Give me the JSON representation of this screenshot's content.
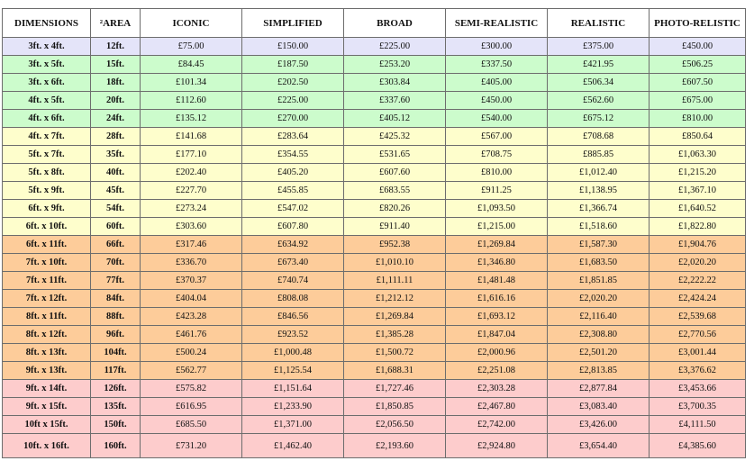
{
  "table": {
    "headers": [
      "DIMENSIONS",
      "²AREA",
      "ICONIC",
      "SIMPLIFIED",
      "BROAD",
      "SEMI-REALISTIC",
      "REALISTIC",
      "PHOTO-RELISTIC"
    ],
    "row_colors": {
      "lavender": "#e4e4f9",
      "green": "#ccfccc",
      "yellow": "#fefecc",
      "orange": "#fdcc9a",
      "pink": "#fdcccc"
    },
    "rows": [
      {
        "band": "lavender",
        "cells": [
          "3ft. x 4ft.",
          "12ft.",
          "£75.00",
          "£150.00",
          "£225.00",
          "£300.00",
          "£375.00",
          "£450.00"
        ]
      },
      {
        "band": "green",
        "cells": [
          "3ft. x 5ft.",
          "15ft.",
          "£84.45",
          "£187.50",
          "£253.20",
          "£337.50",
          "£421.95",
          "£506.25"
        ]
      },
      {
        "band": "green",
        "cells": [
          "3ft. x 6ft.",
          "18ft.",
          "£101.34",
          "£202.50",
          "£303.84",
          "£405.00",
          "£506.34",
          "£607.50"
        ]
      },
      {
        "band": "green",
        "cells": [
          "4ft. x 5ft.",
          "20ft.",
          "£112.60",
          "£225.00",
          "£337.60",
          "£450.00",
          "£562.60",
          "£675.00"
        ]
      },
      {
        "band": "green",
        "cells": [
          "4ft. x 6ft.",
          "24ft.",
          "£135.12",
          "£270.00",
          "£405.12",
          "£540.00",
          "£675.12",
          "£810.00"
        ]
      },
      {
        "band": "yellow",
        "cells": [
          "4ft. x 7ft.",
          "28ft.",
          "£141.68",
          "£283.64",
          "£425.32",
          "£567.00",
          "£708.68",
          "£850.64"
        ]
      },
      {
        "band": "yellow",
        "cells": [
          "5ft. x 7ft.",
          "35ft.",
          "£177.10",
          "£354.55",
          "£531.65",
          "£708.75",
          "£885.85",
          "£1,063.30"
        ]
      },
      {
        "band": "yellow",
        "cells": [
          "5ft. x 8ft.",
          "40ft.",
          "£202.40",
          "£405.20",
          "£607.60",
          "£810.00",
          "£1,012.40",
          "£1,215.20"
        ]
      },
      {
        "band": "yellow",
        "cells": [
          "5ft. x 9ft.",
          "45ft.",
          "£227.70",
          "£455.85",
          "£683.55",
          "£911.25",
          "£1,138.95",
          "£1,367.10"
        ]
      },
      {
        "band": "yellow",
        "cells": [
          "6ft. x 9ft.",
          "54ft.",
          "£273.24",
          "£547.02",
          "£820.26",
          "£1,093.50",
          "£1,366.74",
          "£1,640.52"
        ]
      },
      {
        "band": "yellow",
        "cells": [
          "6ft. x 10ft.",
          "60ft.",
          "£303.60",
          "£607.80",
          "£911.40",
          "£1,215.00",
          "£1,518.60",
          "£1,822.80"
        ]
      },
      {
        "band": "orange",
        "cells": [
          "6ft. x 11ft.",
          "66ft.",
          "£317.46",
          "£634.92",
          "£952.38",
          "£1,269.84",
          "£1,587.30",
          "£1,904.76"
        ]
      },
      {
        "band": "orange",
        "cells": [
          "7ft. x 10ft.",
          "70ft.",
          "£336.70",
          "£673.40",
          "£1,010.10",
          "£1,346.80",
          "£1,683.50",
          "£2,020.20"
        ]
      },
      {
        "band": "orange",
        "cells": [
          "7ft. x 11ft.",
          "77ft.",
          "£370.37",
          "£740.74",
          "£1,111.11",
          "£1,481.48",
          "£1,851.85",
          "£2,222.22"
        ]
      },
      {
        "band": "orange",
        "cells": [
          "7ft. x 12ft.",
          "84ft.",
          "£404.04",
          "£808.08",
          "£1,212.12",
          "£1,616.16",
          "£2,020.20",
          "£2,424.24"
        ]
      },
      {
        "band": "orange",
        "cells": [
          "8ft. x 11ft.",
          "88ft.",
          "£423.28",
          "£846.56",
          "£1,269.84",
          "£1,693.12",
          "£2,116.40",
          "£2,539.68"
        ]
      },
      {
        "band": "orange",
        "cells": [
          "8ft. x 12ft.",
          "96ft.",
          "£461.76",
          "£923.52",
          "£1,385.28",
          "£1,847.04",
          "£2,308.80",
          "£2,770.56"
        ]
      },
      {
        "band": "orange",
        "cells": [
          "8ft. x 13ft.",
          "104ft.",
          "£500.24",
          "£1,000.48",
          "£1,500.72",
          "£2,000.96",
          "£2,501.20",
          "£3,001.44"
        ]
      },
      {
        "band": "orange",
        "cells": [
          "9ft. x 13ft.",
          "117ft.",
          "£562.77",
          "£1,125.54",
          "£1,688.31",
          "£2,251.08",
          "£2,813.85",
          "£3,376.62"
        ]
      },
      {
        "band": "pink",
        "cells": [
          "9ft. x 14ft.",
          "126ft.",
          "£575.82",
          "£1,151.64",
          "£1,727.46",
          "£2,303.28",
          "£2,877.84",
          "£3,453.66"
        ]
      },
      {
        "band": "pink",
        "cells": [
          "9ft. x 15ft.",
          "135ft.",
          "£616.95",
          "£1,233.90",
          "£1,850.85",
          "£2,467.80",
          "£3,083.40",
          "£3,700.35"
        ]
      },
      {
        "band": "pink",
        "cells": [
          "10ft x 15ft.",
          "150ft.",
          "£685.50",
          "£1,371.00",
          "£2,056.50",
          "£2,742.00",
          "£3,426.00",
          "£4,111.50"
        ]
      },
      {
        "band": "pink",
        "cells": [
          "10ft. x 16ft.",
          "160ft.",
          "£731.20",
          "£1,462.40",
          "£2,193.60",
          "£2,924.80",
          "£3,654.40",
          "£4,385.60"
        ]
      }
    ]
  }
}
